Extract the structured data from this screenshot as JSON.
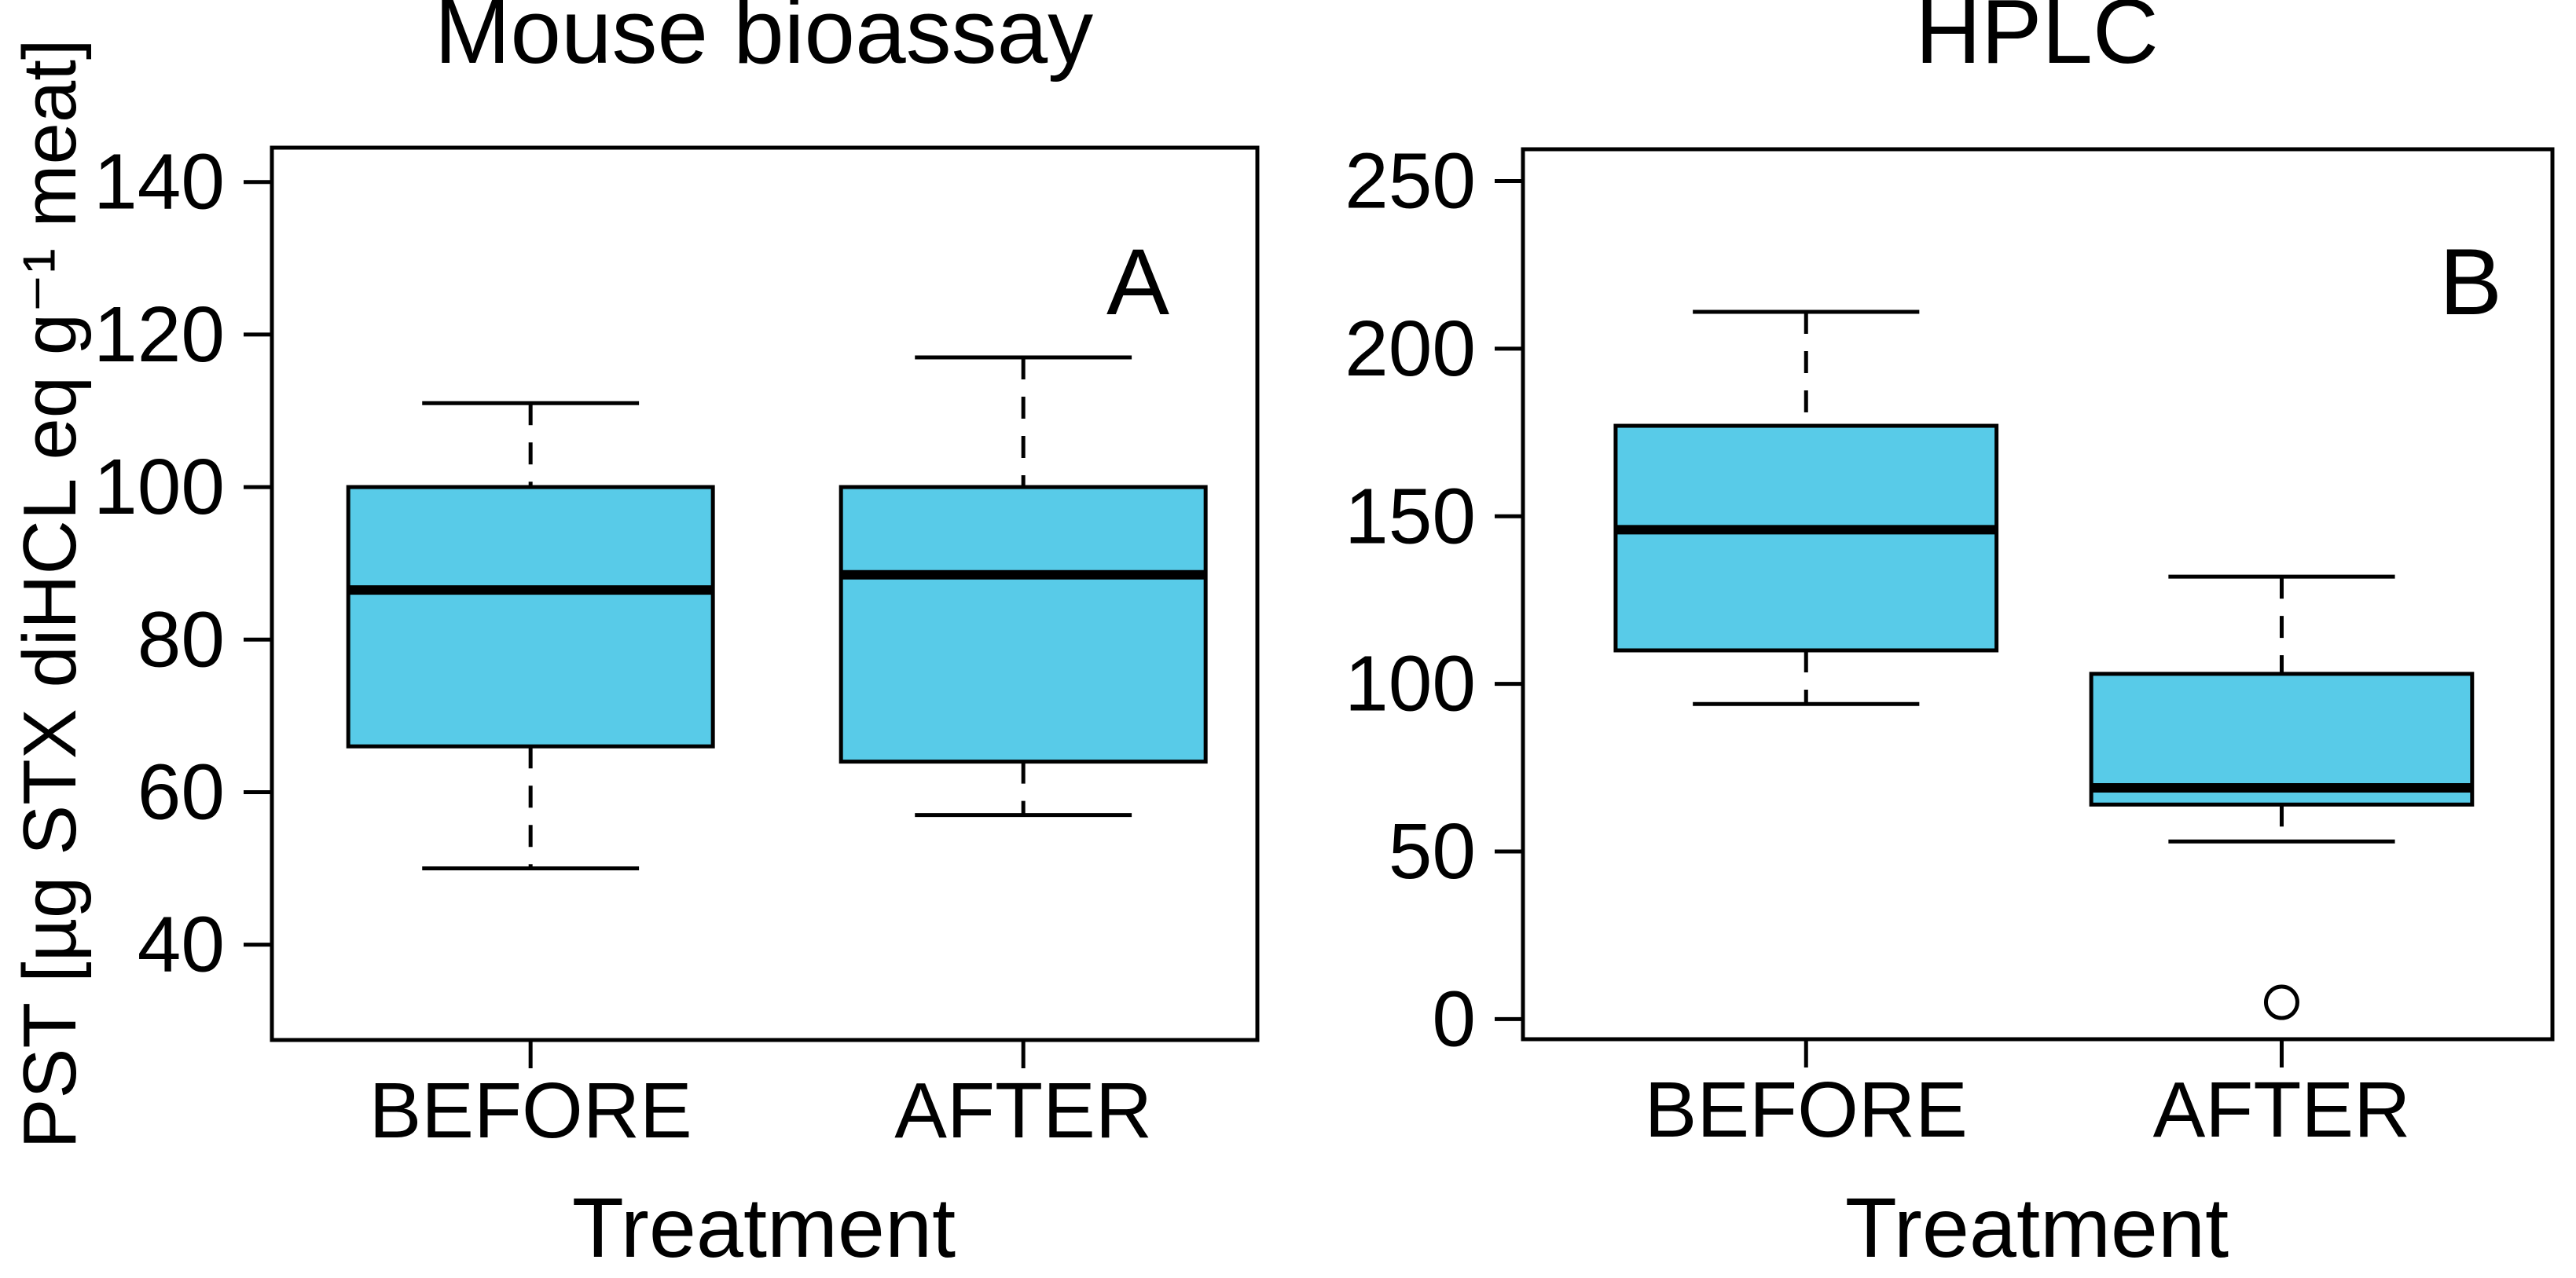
{
  "figure": {
    "background": "#ffffff",
    "box_fill": "#58CBE8",
    "line_color": "#000000"
  },
  "chart_data": [
    {
      "type": "boxplot",
      "panel_letter": "A",
      "title": "Mouse bioassay",
      "xlabel": "Treatment",
      "ylabel": "PST [µg STX diHCL eq g⁻¹ meat]",
      "categories": [
        "BEFORE",
        "AFTER"
      ],
      "yticks": [
        40,
        60,
        80,
        100,
        120,
        140
      ],
      "ylim": [
        27.5,
        144.5
      ],
      "grid": false,
      "boxes": [
        {
          "category": "BEFORE",
          "whisker_low": 50,
          "q1": 66,
          "median": 86.5,
          "q3": 100,
          "whisker_high": 111,
          "outliers": []
        },
        {
          "category": "AFTER",
          "whisker_low": 57,
          "q1": 64,
          "median": 88.5,
          "q3": 100,
          "whisker_high": 117,
          "outliers": []
        }
      ]
    },
    {
      "type": "boxplot",
      "panel_letter": "B",
      "title": "HPLC",
      "xlabel": "Treatment",
      "ylabel": "",
      "categories": [
        "BEFORE",
        "AFTER"
      ],
      "yticks": [
        0,
        50,
        100,
        150,
        200,
        250
      ],
      "ylim": [
        -6,
        259.5
      ],
      "grid": false,
      "boxes": [
        {
          "category": "BEFORE",
          "whisker_low": 94,
          "q1": 110,
          "median": 146,
          "q3": 177,
          "whisker_high": 211,
          "outliers": []
        },
        {
          "category": "AFTER",
          "whisker_low": 53,
          "q1": 64,
          "median": 69,
          "q3": 103,
          "whisker_high": 132,
          "outliers": [
            5
          ]
        }
      ]
    }
  ]
}
